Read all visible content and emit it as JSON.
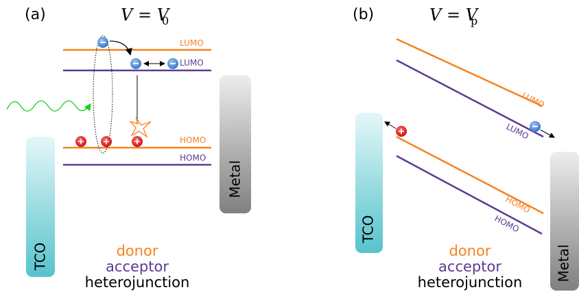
{
  "panels": [
    {
      "label": "(a)",
      "equation": {
        "text": "V = V",
        "subscript": "0"
      },
      "levels": [
        "LUMO",
        "LUMO",
        "HOMO",
        "HOMO"
      ],
      "electrode_left": "TCO",
      "electrode_right": "Metal",
      "legend": [
        "donor",
        "acceptor",
        "heterojunction"
      ]
    },
    {
      "label": "(b)",
      "equation": {
        "text": "V = V",
        "subscript": "p"
      },
      "levels": [
        "LUMO",
        "LUMO",
        "HOMO",
        "HOMO"
      ],
      "electrode_left": "TCO",
      "electrode_right": "Metal",
      "legend": [
        "donor",
        "acceptor",
        "heterojunction"
      ]
    }
  ]
}
